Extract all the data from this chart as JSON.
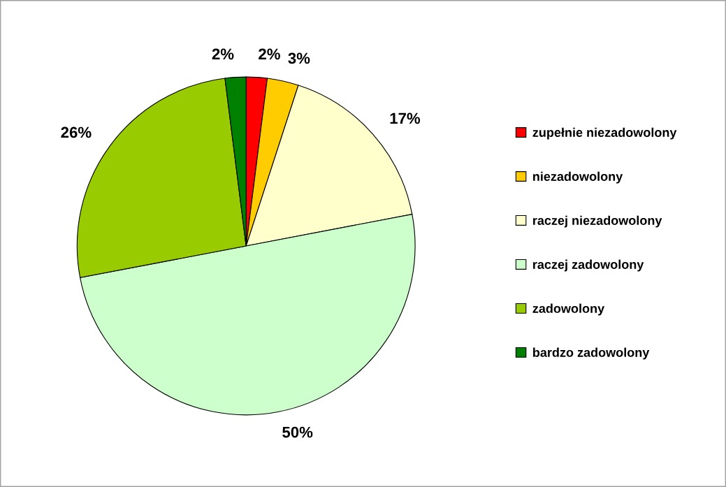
{
  "chart_data": {
    "type": "pie",
    "categories": [
      "zupełnie niezadowolony",
      "niezadowolony",
      "raczej niezadowolony",
      "raczej zadowolony",
      "zadowolony",
      "bardzo zadowolony"
    ],
    "values": [
      2,
      3,
      17,
      50,
      26,
      2
    ],
    "colors": [
      "#ff0000",
      "#ffcc00",
      "#ffffcc",
      "#ccffcc",
      "#99cc00",
      "#008000"
    ],
    "value_labels": [
      "2%",
      "3%",
      "17%",
      "50%",
      "26%",
      "2%"
    ],
    "legend": "right"
  }
}
